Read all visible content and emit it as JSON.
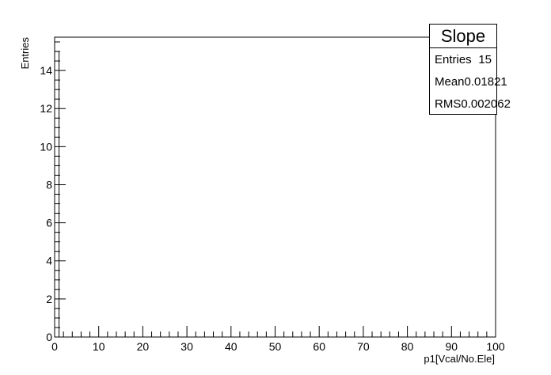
{
  "chart_data": {
    "type": "bar",
    "title": "",
    "xlabel": "p1[Vcal/No.Ele]",
    "ylabel": "Entries",
    "xlim": [
      0,
      100
    ],
    "ylim": [
      0,
      15.75
    ],
    "x_ticks": [
      "0",
      "10",
      "20",
      "30",
      "40",
      "50",
      "60",
      "70",
      "80",
      "90",
      "100"
    ],
    "y_ticks": [
      "0",
      "2",
      "4",
      "6",
      "8",
      "10",
      "12",
      "14"
    ],
    "bins": {
      "low": 0,
      "high": 100,
      "width": 1
    },
    "values": [
      15
    ],
    "categories": [
      "0"
    ]
  },
  "stats": {
    "title": "Slope",
    "rows": [
      {
        "label": "Entries",
        "value": "15"
      },
      {
        "label": "Mean",
        "value": "0.01821"
      },
      {
        "label": "RMS",
        "value": "0.002062"
      }
    ]
  },
  "colors": {
    "axis": "#000000",
    "background": "#ffffff",
    "fill": "#ffffff"
  }
}
